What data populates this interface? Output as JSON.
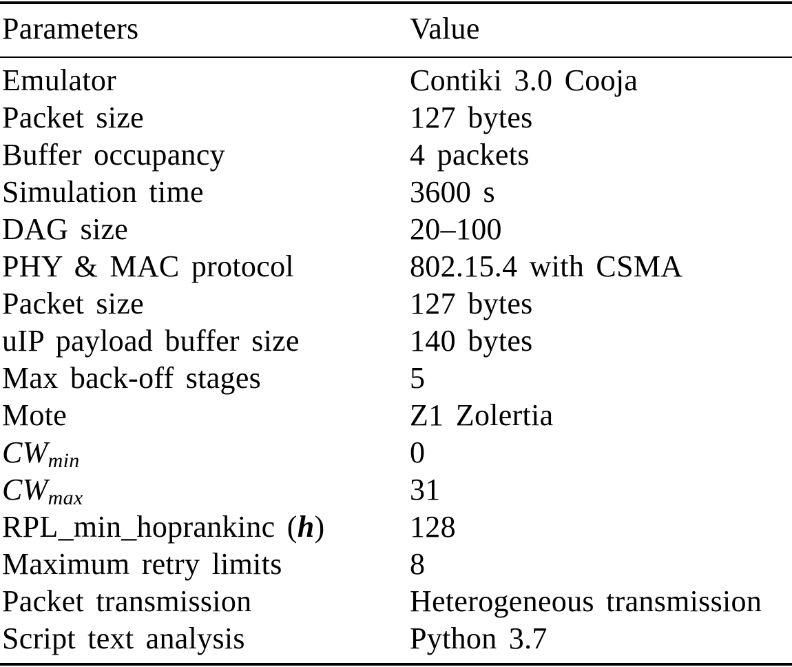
{
  "table": {
    "header": {
      "param": "Parameters",
      "value": "Value"
    },
    "rows": [
      {
        "param": "Emulator",
        "value": "Contiki 3.0 Cooja"
      },
      {
        "param": "Packet size",
        "value": "127 bytes"
      },
      {
        "param": "Buffer occupancy",
        "value": "4 packets"
      },
      {
        "param": "Simulation time",
        "value": "3600 s"
      },
      {
        "param": "DAG size",
        "value": "20–100"
      },
      {
        "param": "PHY & MAC protocol",
        "value": "802.15.4 with CSMA"
      },
      {
        "param": "Packet size",
        "value": "127 bytes"
      },
      {
        "param": "uIP payload buffer size",
        "value": "140 bytes"
      },
      {
        "param": "Max back-off stages",
        "value": "5"
      },
      {
        "param": "Mote",
        "value": "Z1 Zolertia"
      },
      {
        "param_base": "CW",
        "param_sub": "min",
        "value": "0"
      },
      {
        "param_base": "CW",
        "param_sub": "max",
        "value": "31"
      },
      {
        "param_text": "RPL_min_hoprankinc (",
        "param_bold": "h",
        "param_close": ")",
        "value": "128"
      },
      {
        "param": "Maximum retry limits",
        "value": "8"
      },
      {
        "param": "Packet transmission",
        "value": "Heterogeneous transmission"
      },
      {
        "param": "Script text analysis",
        "value": "Python 3.7"
      }
    ]
  }
}
